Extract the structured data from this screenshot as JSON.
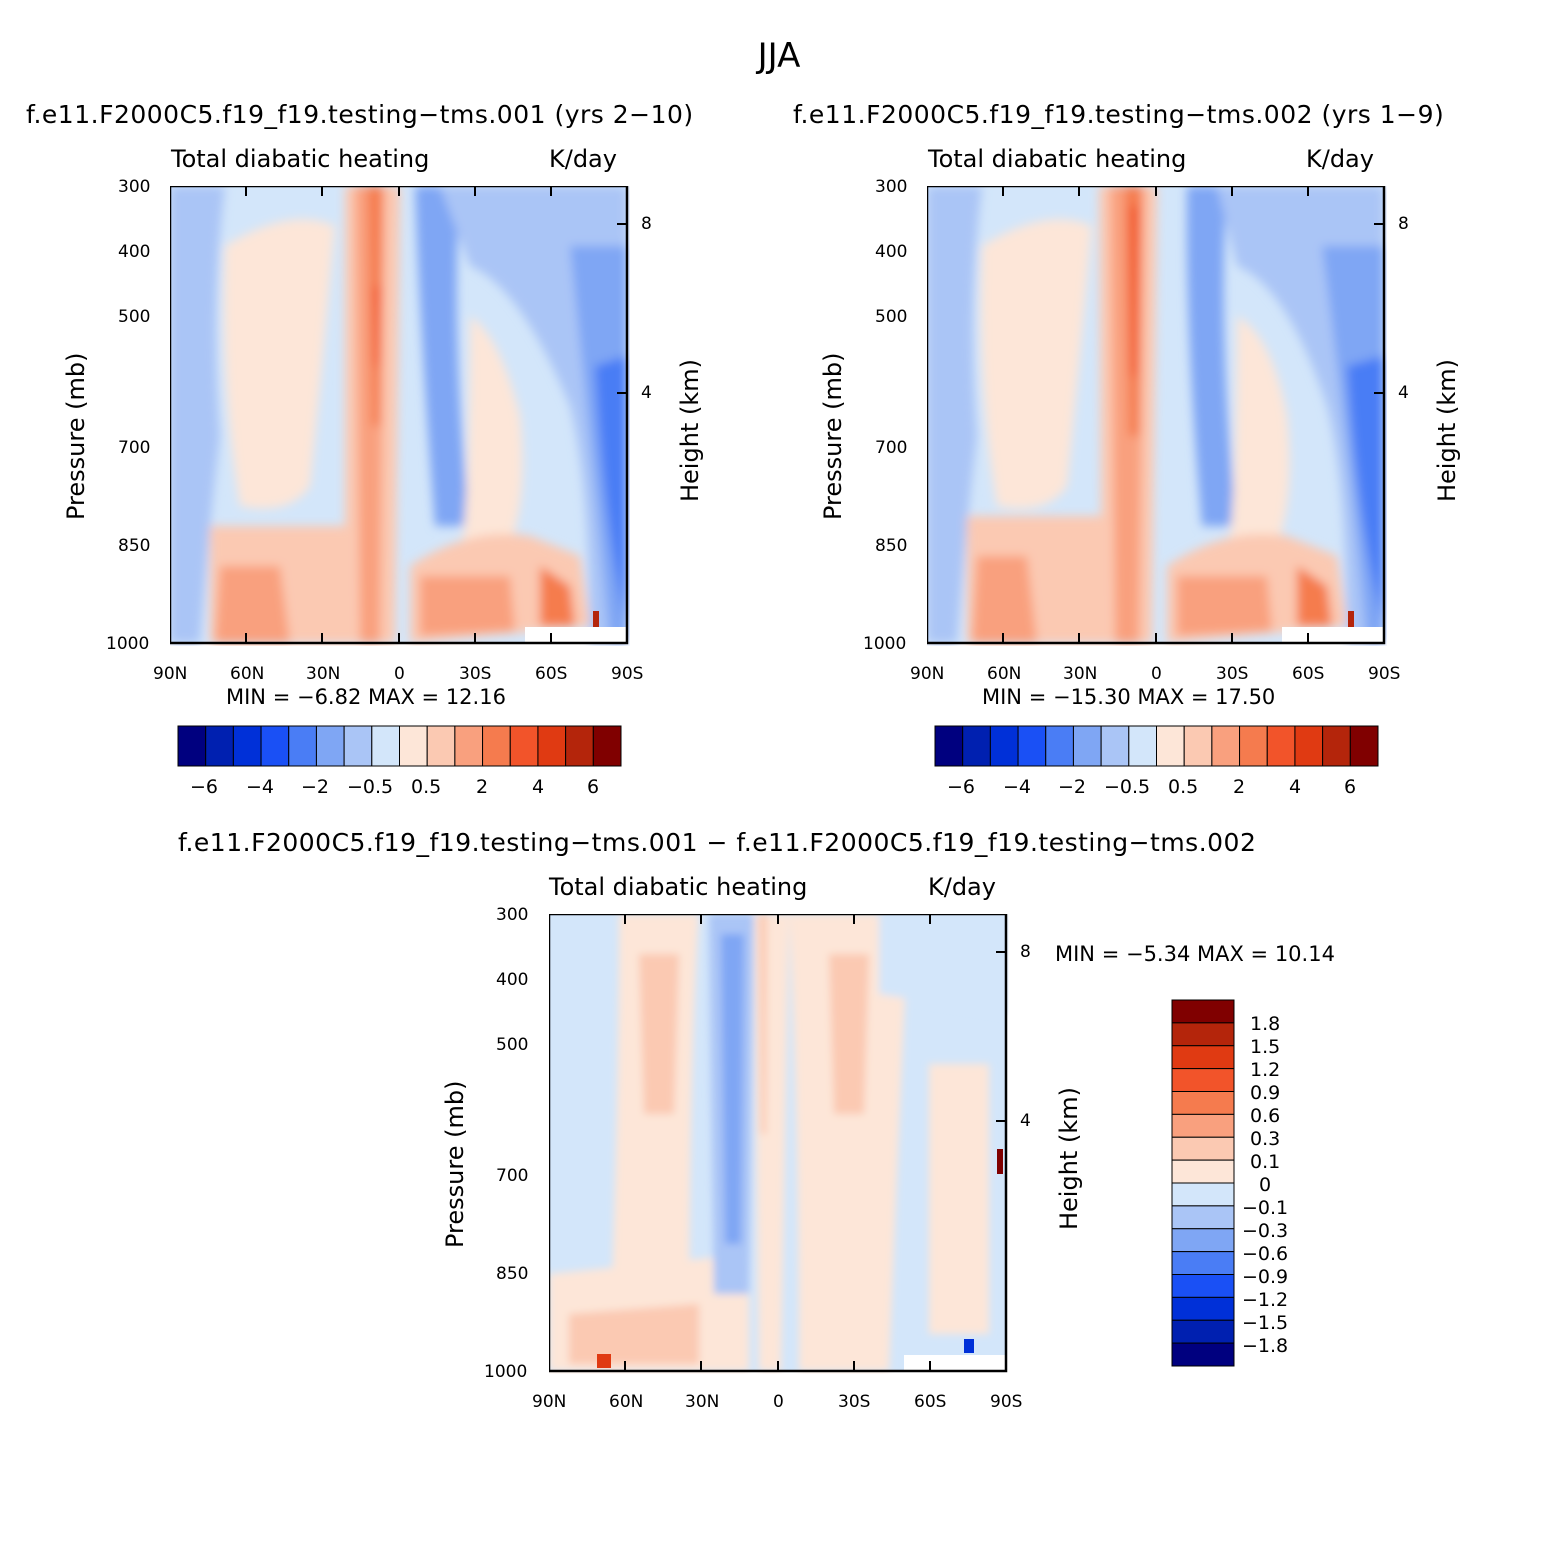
{
  "page_title": "JJA",
  "panels": [
    {
      "run_title": "f.e11.F2000C5.f19_f19.testing−tms.001 (yrs 2−10)",
      "var_label": "Total diabatic heating",
      "units_label": "K/day",
      "min_max": "MIN =   −6.82   MAX =   12.16"
    },
    {
      "run_title": "f.e11.F2000C5.f19_f19.testing−tms.002 (yrs 1−9)",
      "var_label": "Total diabatic heating",
      "units_label": "K/day",
      "min_max": "MIN = −15.30   MAX =   17.50"
    },
    {
      "run_title": "f.e11.F2000C5.f19_f19.testing−tms.001 − f.e11.F2000C5.f19_f19.testing−tms.002",
      "var_label": "Total diabatic heating",
      "units_label": "K/day",
      "min_max": "MIN =   −5.34   MAX =   10.14"
    }
  ],
  "axes": {
    "ylabel_left": "Pressure (mb)",
    "ylabel_right": "Height (km)",
    "pressure_ticks": [
      "300",
      "400",
      "500",
      "700",
      "850",
      "1000"
    ],
    "height_ticks": [
      "8",
      "4"
    ],
    "lat_ticks": [
      "90N",
      "60N",
      "30N",
      "0",
      "30S",
      "60S",
      "90S"
    ]
  },
  "colorbar_main": {
    "labels": [
      "−6",
      "−4",
      "−2",
      "−0.5",
      "0.5",
      "2",
      "4",
      "6"
    ],
    "colors": [
      "#00007f",
      "#0020b0",
      "#0030d8",
      "#1a50f5",
      "#4a7df5",
      "#7fa6f4",
      "#aac5f6",
      "#d3e6fa",
      "#fde6d8",
      "#fbc9b2",
      "#f9a07e",
      "#f57b4e",
      "#f2542a",
      "#e03a12",
      "#b4250b",
      "#800000"
    ]
  },
  "colorbar_diff": {
    "labels": [
      "1.8",
      "1.5",
      "1.2",
      "0.9",
      "0.6",
      "0.3",
      "0.1",
      "0",
      "−0.1",
      "−0.3",
      "−0.6",
      "−0.9",
      "−1.2",
      "−1.5",
      "−1.8"
    ],
    "colors": [
      "#800000",
      "#b4250b",
      "#e03a12",
      "#f2542a",
      "#f57b4e",
      "#f9a07e",
      "#fbc9b2",
      "#fde6d8",
      "#d3e6fa",
      "#aac5f6",
      "#7fa6f4",
      "#4a7df5",
      "#1a50f5",
      "#0030d8",
      "#0020b0",
      "#00007f"
    ]
  },
  "chart_data": [
    {
      "type": "heatmap",
      "title": "f.e11.F2000C5.f19_f19.testing−tms.001 (yrs 2−10)",
      "subtitle": "Total diabatic heating",
      "units": "K/day",
      "xlabel": "",
      "ylabel": "Pressure (mb)",
      "ylabel_right": "Height (km)",
      "x_ticks": [
        "90N",
        "60N",
        "30N",
        "0",
        "30S",
        "60S",
        "90S"
      ],
      "y_ticks": [
        300,
        400,
        500,
        700,
        850,
        1000
      ],
      "min": -6.82,
      "max": 12.16,
      "levels": [
        -6,
        -4,
        -2,
        -0.5,
        0.5,
        2,
        4,
        6
      ]
    },
    {
      "type": "heatmap",
      "title": "f.e11.F2000C5.f19_f19.testing−tms.002 (yrs 1−9)",
      "subtitle": "Total diabatic heating",
      "units": "K/day",
      "xlabel": "",
      "ylabel": "Pressure (mb)",
      "ylabel_right": "Height (km)",
      "x_ticks": [
        "90N",
        "60N",
        "30N",
        "0",
        "30S",
        "60S",
        "90S"
      ],
      "y_ticks": [
        300,
        400,
        500,
        700,
        850,
        1000
      ],
      "min": -15.3,
      "max": 17.5,
      "levels": [
        -6,
        -4,
        -2,
        -0.5,
        0.5,
        2,
        4,
        6
      ]
    },
    {
      "type": "heatmap",
      "title": "f.e11.F2000C5.f19_f19.testing−tms.001 − f.e11.F2000C5.f19_f19.testing−tms.002",
      "subtitle": "Total diabatic heating",
      "units": "K/day",
      "xlabel": "",
      "ylabel": "Pressure (mb)",
      "ylabel_right": "Height (km)",
      "x_ticks": [
        "90N",
        "60N",
        "30N",
        "0",
        "30S",
        "60S",
        "90S"
      ],
      "y_ticks": [
        300,
        400,
        500,
        700,
        850,
        1000
      ],
      "min": -5.34,
      "max": 10.14,
      "levels": [
        -1.8,
        -1.5,
        -1.2,
        -0.9,
        -0.6,
        -0.3,
        -0.1,
        0,
        0.1,
        0.3,
        0.6,
        0.9,
        1.2,
        1.5,
        1.8
      ]
    }
  ]
}
